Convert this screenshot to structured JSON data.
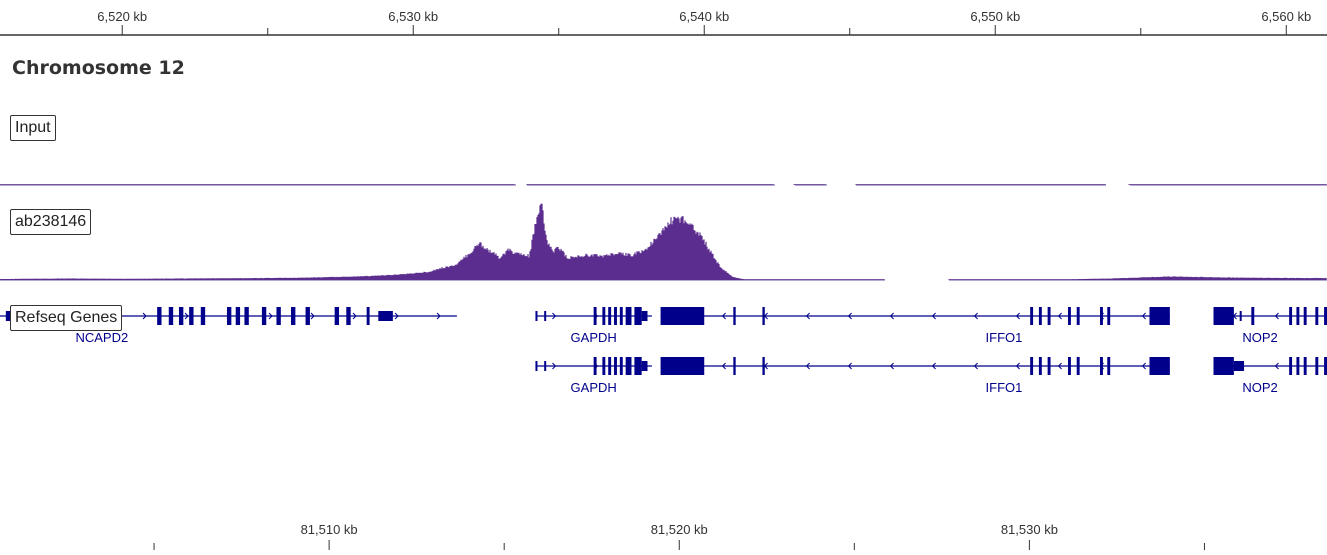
{
  "chromosome_title": "Chromosome 12",
  "colors": {
    "signal": "#5b2d8e",
    "gene": "#00008b",
    "axis": "#333333",
    "gap_line": "#9b8fc0"
  },
  "tracks": {
    "input_label": "Input",
    "chip_label": "ab238146",
    "genes_label": "Refseq Genes"
  },
  "chart_data": [
    {
      "type": "area",
      "name": "top-coordinate-ruler",
      "tick_labels": [
        "6,520 kb",
        "6,530 kb",
        "6,540 kb",
        "6,550 kb",
        "6,560 kb"
      ],
      "tick_values_kb": [
        6520,
        6530,
        6540,
        6550,
        6560
      ],
      "xlim_kb": [
        6515.8,
        6561.4
      ]
    },
    {
      "type": "area",
      "name": "Input",
      "x_kb": [
        6516,
        6520,
        6524,
        6528,
        6530,
        6532,
        6534,
        6536,
        6538,
        6540,
        6544,
        6548,
        6552,
        6556,
        6561
      ],
      "values": [
        0.05,
        0.06,
        0.05,
        0.06,
        0.07,
        0.08,
        0.1,
        0.08,
        0.07,
        0.06,
        0.05,
        0.05,
        0.06,
        0.05,
        0.05
      ],
      "no_data_kb": [
        [
          6533.5,
          6533.9
        ],
        [
          6542.4,
          6543.1
        ],
        [
          6544.2,
          6545.2
        ],
        [
          6553.8,
          6554.6
        ]
      ]
    },
    {
      "type": "area",
      "name": "ab238146",
      "x_kb": [
        6516,
        6518,
        6520,
        6522,
        6524,
        6526,
        6527,
        6528,
        6529,
        6529.5,
        6530,
        6530.5,
        6531,
        6531.5,
        6532,
        6532.3,
        6532.6,
        6533,
        6533.3,
        6533.6,
        6534,
        6534.2,
        6534.4,
        6534.6,
        6534.8,
        6535,
        6535.3,
        6535.6,
        6536,
        6536.5,
        6537,
        6537.5,
        6538,
        6538.5,
        6538.8,
        6539.2,
        6539.6,
        6540,
        6540.3,
        6540.6,
        6541,
        6541.5,
        6545,
        6550,
        6552,
        6554,
        6555,
        6556,
        6557,
        6558,
        6559,
        6560,
        6561
      ],
      "values": [
        1,
        1.5,
        1.2,
        1.5,
        1.8,
        2.2,
        2.8,
        3.5,
        4.5,
        5.5,
        6.5,
        8,
        12,
        15,
        28,
        37,
        30,
        22,
        30,
        26,
        24,
        52,
        80,
        40,
        28,
        34,
        22,
        23,
        25,
        24,
        26,
        25,
        30,
        45,
        58,
        62,
        55,
        40,
        25,
        12,
        3,
        0,
        0,
        0,
        0.5,
        1.5,
        2.5,
        3.5,
        3,
        2.5,
        2.2,
        2,
        2
      ],
      "no_data_kb": [
        [
          6546.2,
          6548.4
        ]
      ],
      "ylim": [
        0,
        80
      ]
    },
    {
      "type": "table",
      "name": "Refseq Genes",
      "genes": [
        {
          "label": "NCAPD2",
          "row": 1,
          "start_kb": 6515.8,
          "end_kb": 6531.5,
          "strand": "+"
        },
        {
          "label": "GAPDH",
          "row": 1,
          "start_kb": 6534.2,
          "end_kb": 6538.2,
          "strand": "+"
        },
        {
          "label": "IFFO1",
          "row": 1,
          "start_kb": 6538.5,
          "end_kb": 6556.0,
          "strand": "-"
        },
        {
          "label": "NOP2",
          "row": 1,
          "start_kb": 6557.5,
          "end_kb": 6561.4,
          "strand": "-"
        },
        {
          "label": "GAPDH",
          "row": 2,
          "start_kb": 6534.2,
          "end_kb": 6538.2,
          "strand": "+"
        },
        {
          "label": "IFFO1",
          "row": 2,
          "start_kb": 6538.5,
          "end_kb": 6556.0,
          "strand": "-"
        },
        {
          "label": "NOP2",
          "row": 2,
          "start_kb": 6557.5,
          "end_kb": 6561.4,
          "strand": "-"
        }
      ]
    },
    {
      "type": "area",
      "name": "bottom-coordinate-ruler",
      "tick_labels": [
        "81,510 kb",
        "81,520 kb",
        "81,530 kb"
      ],
      "tick_values_kb": [
        81510,
        81520,
        81530
      ],
      "xlim_kb": [
        81500.6,
        81538.5
      ],
      "minor_tick_values_kb": [
        81505,
        81515,
        81525,
        81535
      ]
    }
  ]
}
